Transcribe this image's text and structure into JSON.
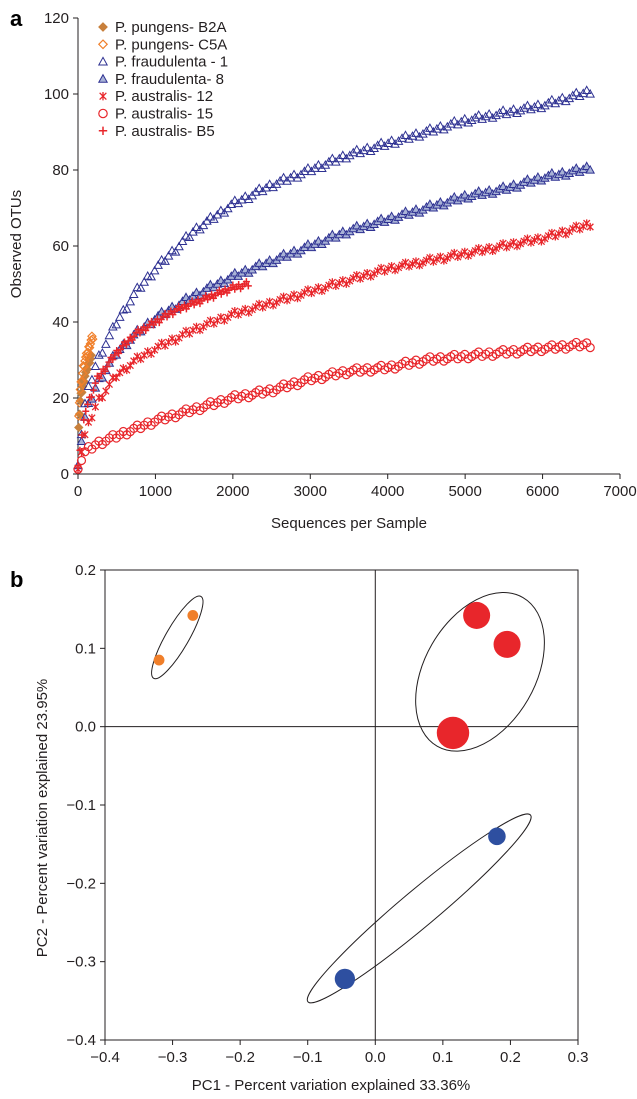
{
  "chart_data": [
    {
      "panel": "a",
      "type": "scatter",
      "xlabel": "Sequences per Sample",
      "ylabel": "Observed OTUs",
      "xlim": [
        0,
        7000
      ],
      "ylim": [
        0,
        120
      ],
      "xticks": [
        0,
        1000,
        2000,
        3000,
        4000,
        5000,
        6000,
        7000
      ],
      "yticks": [
        0,
        20,
        40,
        60,
        80,
        100,
        120
      ],
      "grid": false,
      "legend_position": "top-left",
      "series": [
        {
          "name": "P. pungens- B2A",
          "color": "#c8803c",
          "marker": "diamond-filled",
          "x": [
            10,
            30,
            50,
            70,
            90,
            110,
            130,
            150,
            170
          ],
          "y": [
            13,
            19,
            22,
            24,
            26,
            27,
            29,
            30,
            31
          ]
        },
        {
          "name": "P. pungens- C5A",
          "color": "#f07f2a",
          "marker": "diamond-open",
          "x": [
            10,
            30,
            50,
            70,
            90,
            110,
            130,
            150,
            170,
            190
          ],
          "y": [
            16,
            22,
            25,
            28,
            30,
            31,
            32,
            34,
            35,
            36
          ]
        },
        {
          "name": "P. fraudulenta - 1",
          "color": "#2e3192",
          "marker": "triangle-open",
          "x": [
            0,
            100,
            250,
            500,
            750,
            1000,
            1500,
            2000,
            2500,
            3000,
            3500,
            4000,
            4500,
            5000,
            5500,
            6000,
            6500,
            6650
          ],
          "y": [
            3,
            20,
            30,
            40,
            48,
            54,
            64,
            71,
            76,
            80,
            84,
            87,
            90,
            93,
            95,
            97,
            100,
            101
          ]
        },
        {
          "name": "P. fraudulenta- 8",
          "color": "#2e3192",
          "fill": "#a9b3d6",
          "marker": "triangle-filled",
          "x": [
            0,
            100,
            250,
            500,
            750,
            1000,
            1500,
            2000,
            2500,
            3000,
            3500,
            4000,
            4500,
            5000,
            5500,
            6000,
            6500,
            6650
          ],
          "y": [
            3,
            16,
            24,
            32,
            37,
            41,
            47,
            52,
            56,
            60,
            64,
            67,
            70,
            73,
            75,
            78,
            80,
            81
          ]
        },
        {
          "name": "P. australis- 12",
          "color": "#e8262b",
          "marker": "star",
          "x": [
            0,
            100,
            250,
            500,
            750,
            1000,
            1500,
            2000,
            2500,
            3000,
            3500,
            4000,
            4500,
            5000,
            5500,
            6000,
            6500,
            6650
          ],
          "y": [
            2,
            11,
            19,
            26,
            30,
            33,
            38,
            42,
            45,
            48,
            51,
            54,
            56,
            58,
            60,
            62,
            65,
            66
          ]
        },
        {
          "name": "P. australis- 15",
          "color": "#e8262b",
          "marker": "circle-open",
          "x": [
            0,
            100,
            250,
            500,
            750,
            1000,
            1500,
            2000,
            2500,
            3000,
            3500,
            4000,
            4500,
            5000,
            5500,
            6000,
            6500,
            6650
          ],
          "y": [
            2,
            6,
            8,
            10,
            12,
            14,
            17,
            20,
            22,
            25,
            27,
            28,
            30,
            31,
            32,
            33,
            34,
            34
          ]
        },
        {
          "name": "P. australis- B5",
          "color": "#e8262b",
          "marker": "plus",
          "x": [
            0,
            100,
            250,
            500,
            750,
            1000,
            1250,
            1500,
            1750,
            2000,
            2200
          ],
          "y": [
            3,
            17,
            25,
            32,
            37,
            40,
            43,
            45,
            47,
            49,
            50
          ]
        }
      ]
    },
    {
      "panel": "b",
      "type": "scatter",
      "xlabel": "PC1 - Percent variation explained 33.36%",
      "ylabel": "PC2 - Percent variation explained 23.95%",
      "xlim": [
        -0.4,
        0.3
      ],
      "ylim": [
        -0.4,
        0.2
      ],
      "xticks": [
        -0.4,
        -0.3,
        -0.2,
        -0.1,
        0.0,
        0.1,
        0.2,
        0.3
      ],
      "xtick_labels": [
        "−0.4",
        "−0.3",
        "−0.2",
        "−0.1",
        "0.0",
        "0.1",
        "0.2",
        "0.3"
      ],
      "yticks": [
        -0.4,
        -0.3,
        -0.2,
        -0.1,
        0.0,
        0.1,
        0.2
      ],
      "ytick_labels": [
        "−0.4",
        "−0.3",
        "−0.2",
        "−0.1",
        "0.0",
        "0.1",
        "0.2"
      ],
      "grid": false,
      "groups": [
        {
          "color": "#f07f2a",
          "points": [
            [
              -0.27,
              0.142,
              0.008
            ],
            [
              -0.32,
              0.085,
              0.008
            ]
          ]
        },
        {
          "color": "#e8262b",
          "points": [
            [
              0.15,
              0.142,
              0.02
            ],
            [
              0.195,
              0.105,
              0.02
            ],
            [
              0.115,
              -0.008,
              0.024
            ]
          ]
        },
        {
          "color": "#2e4fa0",
          "points": [
            [
              0.18,
              -0.14,
              0.013
            ],
            [
              -0.045,
              -0.322,
              0.015
            ]
          ]
        }
      ],
      "ellipses": [
        {
          "cx": -0.293,
          "cy": 0.114,
          "rx": 0.07,
          "ry": 0.017,
          "angle": -60
        },
        {
          "cx": 0.155,
          "cy": 0.07,
          "rx": 0.127,
          "ry": 0.082,
          "angle": -60
        },
        {
          "cx": 0.065,
          "cy": -0.232,
          "rx": 0.215,
          "ry": 0.027,
          "angle": -40
        }
      ]
    }
  ],
  "panel_letters": {
    "a": "a",
    "b": "b"
  }
}
